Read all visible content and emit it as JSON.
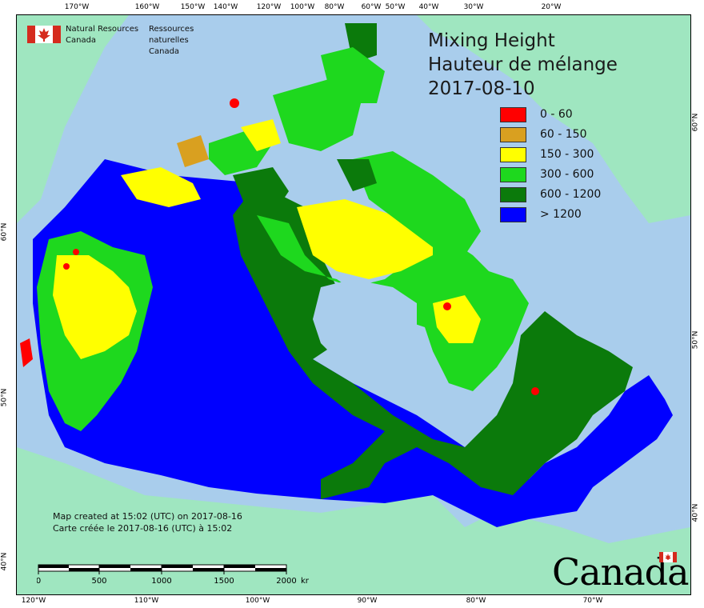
{
  "map": {
    "title_en": "Mixing Height",
    "title_fr": "Hauteur de mélange",
    "date": "2017-08-10",
    "org_en_line1": "Natural Resources",
    "org_en_line2": "Canada",
    "org_fr_line1": "Ressources naturelles",
    "org_fr_line2": "Canada",
    "created_en": "Map created at 15:02 (UTC) on 2017-08-16",
    "created_fr": "Carte créée le 2017-08-16 (UTC) à 15:02",
    "wordmark": "Canada"
  },
  "legend": [
    {
      "label": "0 - 60",
      "color": "#ff0000"
    },
    {
      "label": "60 - 150",
      "color": "#d9a020"
    },
    {
      "label": "150 - 300",
      "color": "#ffff00"
    },
    {
      "label": "300 - 600",
      "color": "#1ed81e"
    },
    {
      "label": "600 - 1200",
      "color": "#0b7a0b"
    },
    {
      "label": "> 1200",
      "color": "#0000ff"
    }
  ],
  "scale": {
    "labels": [
      "0",
      "500",
      "1000",
      "1500",
      "2000"
    ],
    "unit": "km"
  },
  "graticule": {
    "top": [
      "170°W",
      "160°W",
      "150°W",
      "140°W",
      "120°W",
      "100°W",
      "80°W",
      "60°W",
      "50°W",
      "40°W",
      "30°W",
      "20°W"
    ],
    "bottom": [
      "120°W",
      "110°W",
      "100°W",
      "90°W",
      "80°W",
      "70°W"
    ],
    "left": [
      "60°N",
      "50°N",
      "40°N"
    ],
    "right": [
      "60°N",
      "50°N",
      "40°N"
    ]
  },
  "colors": {
    "ocean": "#a9cdec",
    "land_outside": "#9fe6c0",
    "border": "#333333"
  }
}
